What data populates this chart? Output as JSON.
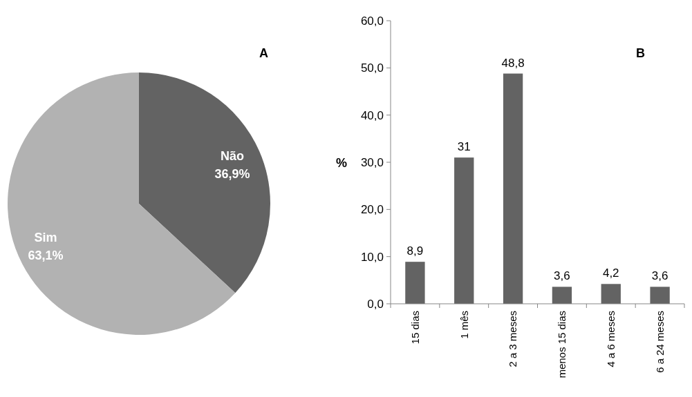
{
  "chart_data": [
    {
      "type": "pie",
      "title": "A",
      "categories": [
        "Não",
        "Sim"
      ],
      "values": [
        36.9,
        63.1
      ],
      "colors": [
        "#636363",
        "#b2b2b2"
      ],
      "value_labels": [
        "36,9%",
        "63,1%"
      ]
    },
    {
      "type": "bar",
      "title": "B",
      "ylabel": "%",
      "categories": [
        "15 dias",
        "1 mês",
        "2 a 3 meses",
        "menos 15 dias",
        "4 a 6 meses",
        "6 a 24 meses"
      ],
      "values": [
        8.9,
        31,
        48.8,
        3.6,
        4.2,
        3.6
      ],
      "color": "#636363",
      "value_labels": [
        "8,9",
        "31",
        "48,8",
        "3,6",
        "4,2",
        "3,6"
      ],
      "ylim": [
        0,
        60
      ],
      "yticks": [
        {
          "value": 0,
          "label": "0,0"
        },
        {
          "value": 10,
          "label": "10,0"
        },
        {
          "value": 20,
          "label": "20,0"
        },
        {
          "value": 30,
          "label": "30,0"
        },
        {
          "value": 40,
          "label": "40,0"
        },
        {
          "value": 50,
          "label": "50,0"
        },
        {
          "value": 60,
          "label": "60,0"
        }
      ],
      "grid": false
    }
  ]
}
